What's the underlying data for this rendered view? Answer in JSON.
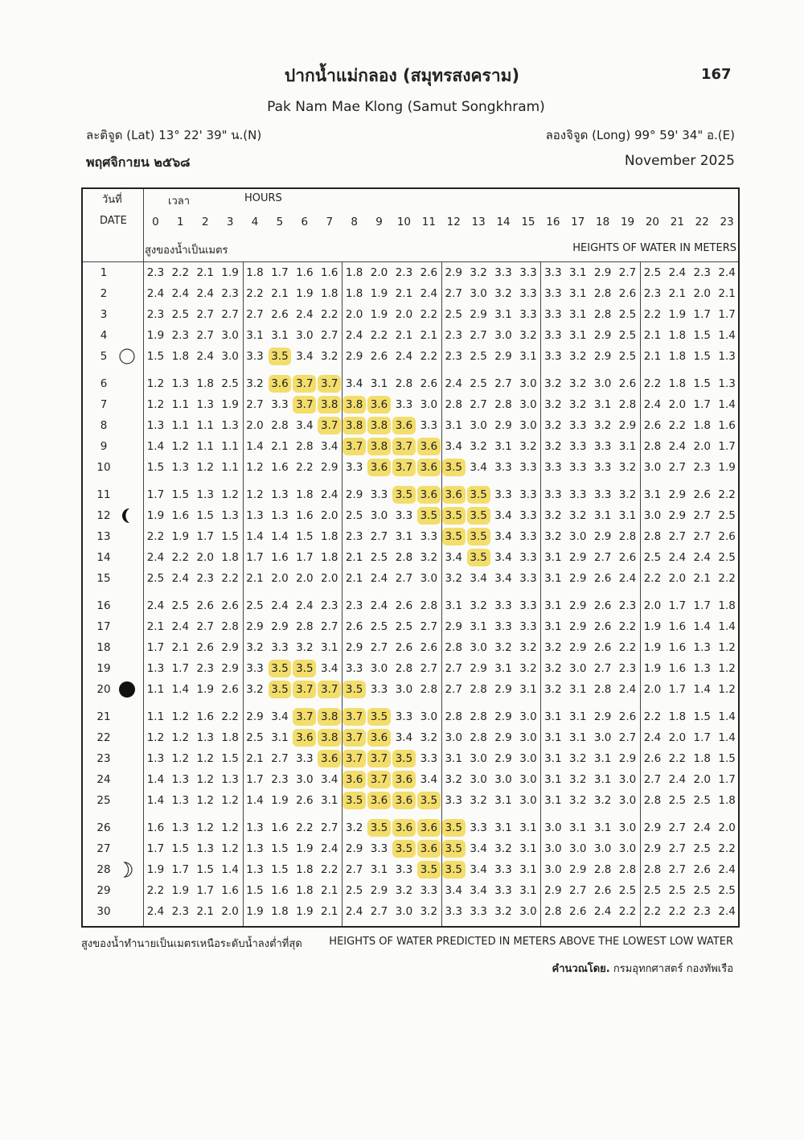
{
  "header": {
    "title": "ปากน้ำแม่กลอง (สมุทรสงคราม)",
    "page_number": "167",
    "subtitle": "Pak Nam Mae Klong (Samut Songkhram)",
    "latitude": "ละติจูด (Lat) 13° 22' 39\" น.(N)",
    "longitude": "ลองจิจูด (Long) 99° 59' 34\" อ.(E)",
    "month_thai": "พฤศจิกายน ๒๕๖๘",
    "month_english": "November 2025"
  },
  "table": {
    "date_label_thai": "วันที่",
    "date_label": "DATE",
    "time_label_thai": "เวลา",
    "time_label": "HOURS",
    "heights_label_thai": "สูงของน้ำเป็นเมตร",
    "heights_label": "HEIGHTS OF WATER IN METERS",
    "hours": [
      0,
      1,
      2,
      3,
      4,
      5,
      6,
      7,
      8,
      9,
      10,
      11,
      12,
      13,
      14,
      15,
      16,
      17,
      18,
      19,
      20,
      21,
      22,
      23
    ],
    "highlight": {
      "min": 3.5,
      "color": "#f3dd6b"
    },
    "rows": [
      {
        "date": 1,
        "values": [
          2.3,
          2.2,
          2.1,
          1.9,
          1.8,
          1.7,
          1.6,
          1.6,
          1.8,
          2.0,
          2.3,
          2.6,
          2.9,
          3.2,
          3.3,
          3.3,
          3.3,
          3.1,
          2.9,
          2.7,
          2.5,
          2.4,
          2.3,
          2.4
        ]
      },
      {
        "date": 2,
        "values": [
          2.4,
          2.4,
          2.4,
          2.3,
          2.2,
          2.1,
          1.9,
          1.8,
          1.8,
          1.9,
          2.1,
          2.4,
          2.7,
          3.0,
          3.2,
          3.3,
          3.3,
          3.1,
          2.8,
          2.6,
          2.3,
          2.1,
          2.0,
          2.1
        ]
      },
      {
        "date": 3,
        "values": [
          2.3,
          2.5,
          2.7,
          2.7,
          2.7,
          2.6,
          2.4,
          2.2,
          2.0,
          1.9,
          2.0,
          2.2,
          2.5,
          2.9,
          3.1,
          3.3,
          3.3,
          3.1,
          2.8,
          2.5,
          2.2,
          1.9,
          1.7,
          1.7
        ]
      },
      {
        "date": 4,
        "values": [
          1.9,
          2.3,
          2.7,
          3.0,
          3.1,
          3.1,
          3.0,
          2.7,
          2.4,
          2.2,
          2.1,
          2.1,
          2.3,
          2.7,
          3.0,
          3.2,
          3.3,
          3.1,
          2.9,
          2.5,
          2.1,
          1.8,
          1.5,
          1.4
        ]
      },
      {
        "date": 5,
        "moon": "full",
        "values": [
          1.5,
          1.8,
          2.4,
          3.0,
          3.3,
          3.5,
          3.4,
          3.2,
          2.9,
          2.6,
          2.4,
          2.2,
          2.3,
          2.5,
          2.9,
          3.1,
          3.3,
          3.2,
          2.9,
          2.5,
          2.1,
          1.8,
          1.5,
          1.3
        ]
      },
      {
        "date": 6,
        "values": [
          1.2,
          1.3,
          1.8,
          2.5,
          3.2,
          3.6,
          3.7,
          3.7,
          3.4,
          3.1,
          2.8,
          2.6,
          2.4,
          2.5,
          2.7,
          3.0,
          3.2,
          3.2,
          3.0,
          2.6,
          2.2,
          1.8,
          1.5,
          1.3
        ]
      },
      {
        "date": 7,
        "values": [
          1.2,
          1.1,
          1.3,
          1.9,
          2.7,
          3.3,
          3.7,
          3.8,
          3.8,
          3.6,
          3.3,
          3.0,
          2.8,
          2.7,
          2.8,
          3.0,
          3.2,
          3.2,
          3.1,
          2.8,
          2.4,
          2.0,
          1.7,
          1.4
        ]
      },
      {
        "date": 8,
        "values": [
          1.3,
          1.1,
          1.1,
          1.3,
          2.0,
          2.8,
          3.4,
          3.7,
          3.8,
          3.8,
          3.6,
          3.3,
          3.1,
          3.0,
          2.9,
          3.0,
          3.2,
          3.3,
          3.2,
          2.9,
          2.6,
          2.2,
          1.8,
          1.6
        ]
      },
      {
        "date": 9,
        "values": [
          1.4,
          1.2,
          1.1,
          1.1,
          1.4,
          2.1,
          2.8,
          3.4,
          3.7,
          3.8,
          3.7,
          3.6,
          3.4,
          3.2,
          3.1,
          3.2,
          3.2,
          3.3,
          3.3,
          3.1,
          2.8,
          2.4,
          2.0,
          1.7
        ]
      },
      {
        "date": 10,
        "values": [
          1.5,
          1.3,
          1.2,
          1.1,
          1.2,
          1.6,
          2.2,
          2.9,
          3.3,
          3.6,
          3.7,
          3.6,
          3.5,
          3.4,
          3.3,
          3.3,
          3.3,
          3.3,
          3.3,
          3.2,
          3.0,
          2.7,
          2.3,
          1.9
        ]
      },
      {
        "date": 11,
        "values": [
          1.7,
          1.5,
          1.3,
          1.2,
          1.2,
          1.3,
          1.8,
          2.4,
          2.9,
          3.3,
          3.5,
          3.6,
          3.6,
          3.5,
          3.3,
          3.3,
          3.3,
          3.3,
          3.3,
          3.2,
          3.1,
          2.9,
          2.6,
          2.2
        ]
      },
      {
        "date": 12,
        "moon": "last_quarter",
        "values": [
          1.9,
          1.6,
          1.5,
          1.3,
          1.3,
          1.3,
          1.6,
          2.0,
          2.5,
          3.0,
          3.3,
          3.5,
          3.5,
          3.5,
          3.4,
          3.3,
          3.2,
          3.2,
          3.1,
          3.1,
          3.0,
          2.9,
          2.7,
          2.5
        ]
      },
      {
        "date": 13,
        "values": [
          2.2,
          1.9,
          1.7,
          1.5,
          1.4,
          1.4,
          1.5,
          1.8,
          2.3,
          2.7,
          3.1,
          3.3,
          3.5,
          3.5,
          3.4,
          3.3,
          3.2,
          3.0,
          2.9,
          2.8,
          2.8,
          2.7,
          2.7,
          2.6
        ]
      },
      {
        "date": 14,
        "values": [
          2.4,
          2.2,
          2.0,
          1.8,
          1.7,
          1.6,
          1.7,
          1.8,
          2.1,
          2.5,
          2.8,
          3.2,
          3.4,
          3.5,
          3.4,
          3.3,
          3.1,
          2.9,
          2.7,
          2.6,
          2.5,
          2.4,
          2.4,
          2.5
        ]
      },
      {
        "date": 15,
        "values": [
          2.5,
          2.4,
          2.3,
          2.2,
          2.1,
          2.0,
          2.0,
          2.0,
          2.1,
          2.4,
          2.7,
          3.0,
          3.2,
          3.4,
          3.4,
          3.3,
          3.1,
          2.9,
          2.6,
          2.4,
          2.2,
          2.0,
          2.1,
          2.2
        ]
      },
      {
        "date": 16,
        "values": [
          2.4,
          2.5,
          2.6,
          2.6,
          2.5,
          2.4,
          2.4,
          2.3,
          2.3,
          2.4,
          2.6,
          2.8,
          3.1,
          3.2,
          3.3,
          3.3,
          3.1,
          2.9,
          2.6,
          2.3,
          2.0,
          1.7,
          1.7,
          1.8
        ]
      },
      {
        "date": 17,
        "values": [
          2.1,
          2.4,
          2.7,
          2.8,
          2.9,
          2.9,
          2.8,
          2.7,
          2.6,
          2.5,
          2.5,
          2.7,
          2.9,
          3.1,
          3.3,
          3.3,
          3.1,
          2.9,
          2.6,
          2.2,
          1.9,
          1.6,
          1.4,
          1.4
        ]
      },
      {
        "date": 18,
        "values": [
          1.7,
          2.1,
          2.6,
          2.9,
          3.2,
          3.3,
          3.2,
          3.1,
          2.9,
          2.7,
          2.6,
          2.6,
          2.8,
          3.0,
          3.2,
          3.2,
          3.2,
          2.9,
          2.6,
          2.2,
          1.9,
          1.6,
          1.3,
          1.2
        ]
      },
      {
        "date": 19,
        "values": [
          1.3,
          1.7,
          2.3,
          2.9,
          3.3,
          3.5,
          3.5,
          3.4,
          3.3,
          3.0,
          2.8,
          2.7,
          2.7,
          2.9,
          3.1,
          3.2,
          3.2,
          3.0,
          2.7,
          2.3,
          1.9,
          1.6,
          1.3,
          1.2
        ]
      },
      {
        "date": 20,
        "moon": "new",
        "values": [
          1.1,
          1.4,
          1.9,
          2.6,
          3.2,
          3.5,
          3.7,
          3.7,
          3.5,
          3.3,
          3.0,
          2.8,
          2.7,
          2.8,
          2.9,
          3.1,
          3.2,
          3.1,
          2.8,
          2.4,
          2.0,
          1.7,
          1.4,
          1.2
        ]
      },
      {
        "date": 21,
        "values": [
          1.1,
          1.2,
          1.6,
          2.2,
          2.9,
          3.4,
          3.7,
          3.8,
          3.7,
          3.5,
          3.3,
          3.0,
          2.8,
          2.8,
          2.9,
          3.0,
          3.1,
          3.1,
          2.9,
          2.6,
          2.2,
          1.8,
          1.5,
          1.4
        ]
      },
      {
        "date": 22,
        "values": [
          1.2,
          1.2,
          1.3,
          1.8,
          2.5,
          3.1,
          3.6,
          3.8,
          3.7,
          3.6,
          3.4,
          3.2,
          3.0,
          2.8,
          2.9,
          3.0,
          3.1,
          3.1,
          3.0,
          2.7,
          2.4,
          2.0,
          1.7,
          1.4
        ]
      },
      {
        "date": 23,
        "values": [
          1.3,
          1.2,
          1.2,
          1.5,
          2.1,
          2.7,
          3.3,
          3.6,
          3.7,
          3.7,
          3.5,
          3.3,
          3.1,
          3.0,
          2.9,
          3.0,
          3.1,
          3.2,
          3.1,
          2.9,
          2.6,
          2.2,
          1.8,
          1.5
        ]
      },
      {
        "date": 24,
        "values": [
          1.4,
          1.3,
          1.2,
          1.3,
          1.7,
          2.3,
          3.0,
          3.4,
          3.6,
          3.7,
          3.6,
          3.4,
          3.2,
          3.0,
          3.0,
          3.0,
          3.1,
          3.2,
          3.1,
          3.0,
          2.7,
          2.4,
          2.0,
          1.7
        ]
      },
      {
        "date": 25,
        "values": [
          1.4,
          1.3,
          1.2,
          1.2,
          1.4,
          1.9,
          2.6,
          3.1,
          3.5,
          3.6,
          3.6,
          3.5,
          3.3,
          3.2,
          3.1,
          3.0,
          3.1,
          3.2,
          3.2,
          3.0,
          2.8,
          2.5,
          2.5,
          1.8
        ]
      },
      {
        "date": 26,
        "values": [
          1.6,
          1.3,
          1.2,
          1.2,
          1.3,
          1.6,
          2.2,
          2.7,
          3.2,
          3.5,
          3.6,
          3.6,
          3.5,
          3.3,
          3.1,
          3.1,
          3.0,
          3.1,
          3.1,
          3.0,
          2.9,
          2.7,
          2.4,
          2.0
        ]
      },
      {
        "date": 27,
        "values": [
          1.7,
          1.5,
          1.3,
          1.2,
          1.3,
          1.5,
          1.9,
          2.4,
          2.9,
          3.3,
          3.5,
          3.6,
          3.5,
          3.4,
          3.2,
          3.1,
          3.0,
          3.0,
          3.0,
          3.0,
          2.9,
          2.7,
          2.5,
          2.2
        ]
      },
      {
        "date": 28,
        "moon": "first_quarter",
        "values": [
          1.9,
          1.7,
          1.5,
          1.4,
          1.3,
          1.5,
          1.8,
          2.2,
          2.7,
          3.1,
          3.3,
          3.5,
          3.5,
          3.4,
          3.3,
          3.1,
          3.0,
          2.9,
          2.8,
          2.8,
          2.8,
          2.7,
          2.6,
          2.4
        ]
      },
      {
        "date": 29,
        "values": [
          2.2,
          1.9,
          1.7,
          1.6,
          1.5,
          1.6,
          1.8,
          2.1,
          2.5,
          2.9,
          3.2,
          3.3,
          3.4,
          3.4,
          3.3,
          3.1,
          2.9,
          2.7,
          2.6,
          2.5,
          2.5,
          2.5,
          2.5,
          2.5
        ]
      },
      {
        "date": 30,
        "values": [
          2.4,
          2.3,
          2.1,
          2.0,
          1.9,
          1.8,
          1.9,
          2.1,
          2.4,
          2.7,
          3.0,
          3.2,
          3.3,
          3.3,
          3.2,
          3.0,
          2.8,
          2.6,
          2.4,
          2.2,
          2.2,
          2.2,
          2.3,
          2.4
        ]
      }
    ]
  },
  "footer": {
    "note_thai": "สูงของน้ำทำนายเป็นเมตรเหนือระดับน้ำลงต่ำที่สุด",
    "note": "HEIGHTS OF WATER PREDICTED IN METERS ABOVE THE LOWEST LOW WATER",
    "credit_label": "คำนวณโดย.",
    "credit": " กรมอุทกศาสตร์ กองทัพเรือ"
  }
}
